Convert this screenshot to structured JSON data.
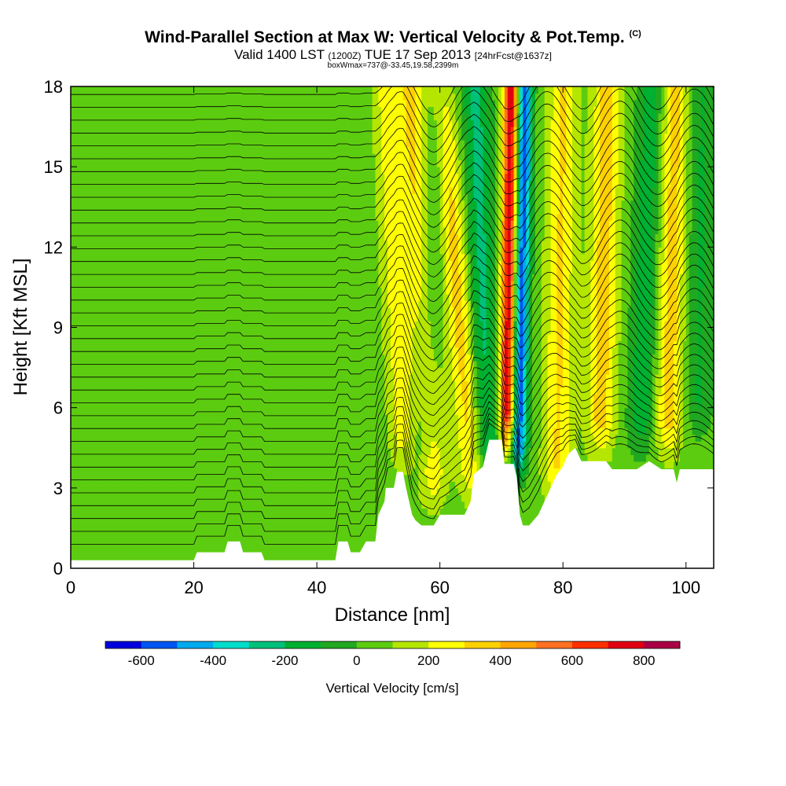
{
  "title": {
    "main": "Wind-Parallel Section at Max W: Vertical Velocity & Pot.Temp.",
    "copyright": "(C)",
    "valid_prefix": "Valid 1400 LST",
    "valid_utc": "(1200Z)",
    "valid_date": "TUE 17 Sep 2013",
    "forecast": "[24hrFcst@1637z]",
    "boxmax": "boxWmax=737@-33.45,19.58,2399m"
  },
  "chart_data": {
    "type": "heatmap",
    "xlabel": "Distance [nm]",
    "ylabel": "Height [Kft MSL]",
    "xlim": [
      0,
      104.5
    ],
    "ylim": [
      0,
      18
    ],
    "x_ticks": [
      0,
      20,
      40,
      60,
      80,
      100
    ],
    "y_ticks": [
      0,
      3,
      6,
      9,
      12,
      15,
      18
    ],
    "colorbar": {
      "label": "Vertical Velocity [cm/s]",
      "tick_labels": [
        "-600",
        "-400",
        "-200",
        "0",
        "200",
        "400",
        "600",
        "800"
      ],
      "levels": [
        -700,
        -600,
        -500,
        -400,
        -300,
        -200,
        -100,
        0,
        100,
        200,
        300,
        400,
        500,
        600,
        700,
        800,
        900
      ],
      "colors": [
        "#0000dd",
        "#0055f0",
        "#00aaee",
        "#00ddcc",
        "#00c07a",
        "#00b030",
        "#20a820",
        "#5ccc10",
        "#b4e600",
        "#ffff00",
        "#ffd000",
        "#ffa500",
        "#ff7020",
        "#ff3000",
        "#e00010",
        "#aa0044"
      ]
    },
    "background_w": 50,
    "updraft_bands": [
      {
        "x_bottom": 54.5,
        "x_top": 51.5,
        "peak_w": 220,
        "z_base": 3.2
      },
      {
        "x_bottom": 59.0,
        "x_top": 55.5,
        "peak_w": 280,
        "z_base": 2.0
      },
      {
        "x_bottom": 66.0,
        "x_top": 60.0,
        "peak_w": 300,
        "z_base": 2.0
      },
      {
        "x_bottom": 70.8,
        "x_top": 71.6,
        "peak_w": 737,
        "z_base": 4.0
      },
      {
        "x_bottom": 79.0,
        "x_top": 80.0,
        "peak_w": 260,
        "z_base": 2.0
      },
      {
        "x_bottom": 86.0,
        "x_top": 87.2,
        "peak_w": 300,
        "z_base": 3.8
      },
      {
        "x_bottom": 97.0,
        "x_top": 98.2,
        "peak_w": 300,
        "z_base": 3.8
      }
    ],
    "downdraft_bands": [
      {
        "x_bottom": 67.8,
        "x_top": 65.8,
        "peak_w": -280,
        "z_base": 2.5
      },
      {
        "x_bottom": 72.7,
        "x_top": 73.8,
        "peak_w": -620,
        "z_base": 3.0
      },
      {
        "x_bottom": 57.0,
        "x_top": 59.5,
        "peak_w": -200,
        "z_base": 3.0
      },
      {
        "x_bottom": 92.5,
        "x_top": 94.5,
        "peak_w": -220,
        "z_base": 3.8
      },
      {
        "x_bottom": 102.0,
        "x_top": 102.5,
        "peak_w": -160,
        "z_base": 4.5
      }
    ],
    "terrain_kft": [
      [
        0,
        0.3
      ],
      [
        20,
        0.3
      ],
      [
        20.5,
        0.6
      ],
      [
        25,
        0.6
      ],
      [
        25.5,
        1.0
      ],
      [
        27.5,
        1.0
      ],
      [
        28,
        0.6
      ],
      [
        31,
        0.6
      ],
      [
        31.5,
        0.3
      ],
      [
        43,
        0.3
      ],
      [
        43.5,
        1.0
      ],
      [
        45,
        1.0
      ],
      [
        45.5,
        0.6
      ],
      [
        47,
        0.6
      ],
      [
        48,
        1.0
      ],
      [
        49.5,
        1.0
      ],
      [
        50,
        2.0
      ],
      [
        51,
        2.5
      ],
      [
        51.2,
        3.0
      ],
      [
        52.5,
        3.0
      ],
      [
        53,
        3.6
      ],
      [
        54,
        3.6
      ],
      [
        54.5,
        3.0
      ],
      [
        55.5,
        2.0
      ],
      [
        56,
        1.8
      ],
      [
        57,
        1.6
      ],
      [
        59,
        1.6
      ],
      [
        60,
        2.0
      ],
      [
        64,
        2.0
      ],
      [
        65,
        2.5
      ],
      [
        65.5,
        3.5
      ],
      [
        67,
        3.8
      ],
      [
        68,
        4.8
      ],
      [
        70,
        4.8
      ],
      [
        70.5,
        3.9
      ],
      [
        72,
        3.9
      ],
      [
        72.5,
        3.4
      ],
      [
        73,
        2.0
      ],
      [
        73.5,
        1.6
      ],
      [
        74.5,
        1.6
      ],
      [
        76,
        2.0
      ],
      [
        77,
        2.5
      ],
      [
        78,
        3.0
      ],
      [
        79,
        3.5
      ],
      [
        80,
        3.8
      ],
      [
        80.5,
        4.1
      ],
      [
        81,
        4.3
      ],
      [
        82,
        4.5
      ],
      [
        83,
        4.0
      ],
      [
        87,
        4.0
      ],
      [
        88,
        3.7
      ],
      [
        92,
        3.7
      ],
      [
        94,
        4.0
      ],
      [
        96,
        3.7
      ],
      [
        98,
        3.7
      ],
      [
        98.5,
        3.2
      ],
      [
        99,
        3.7
      ],
      [
        104.5,
        3.7
      ]
    ],
    "theta_contour_count": 36
  }
}
